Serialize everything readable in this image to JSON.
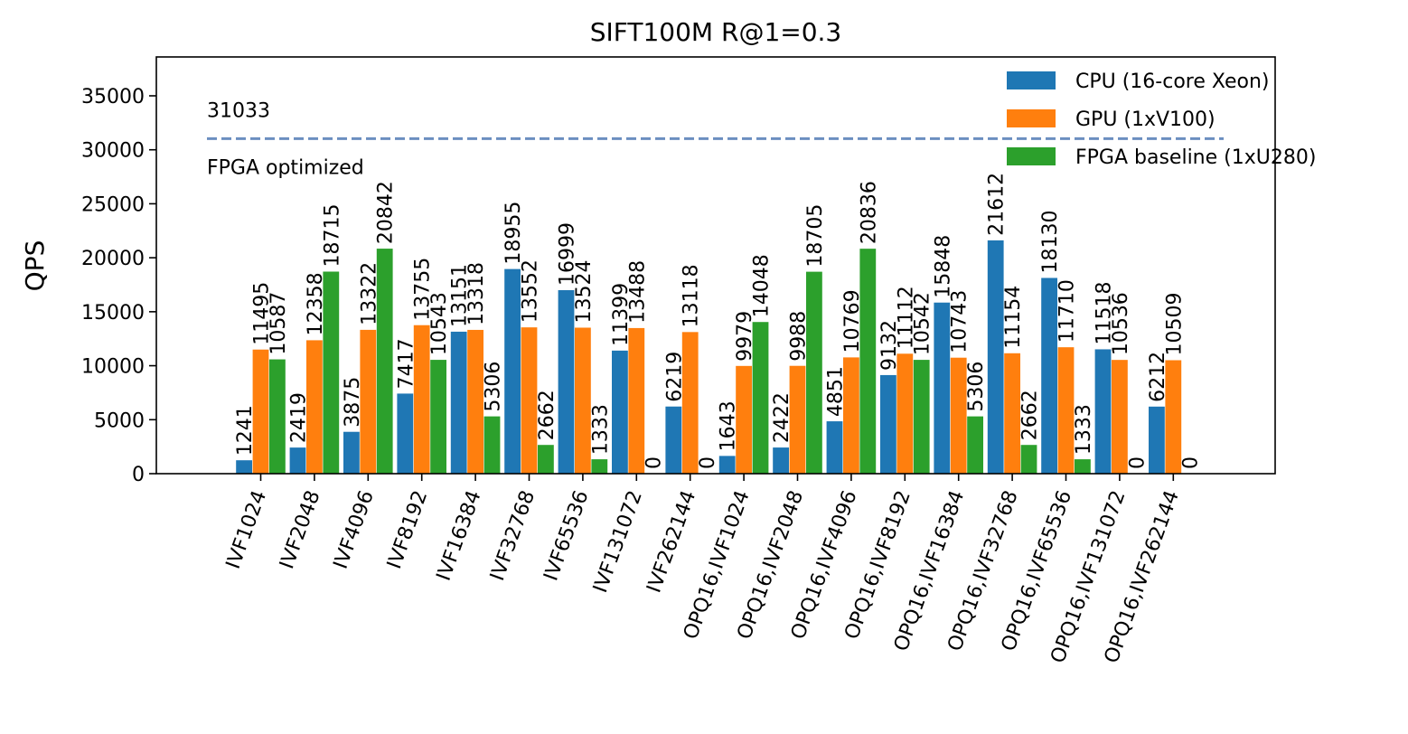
{
  "chart_data": {
    "type": "bar",
    "title": "SIFT100M R@1=0.3",
    "xlabel": "",
    "ylabel": "QPS",
    "ylim": [
      0,
      38600
    ],
    "yticks": [
      0,
      5000,
      10000,
      15000,
      20000,
      25000,
      30000,
      35000
    ],
    "categories": [
      "IVF1024",
      "IVF2048",
      "IVF4096",
      "IVF8192",
      "IVF16384",
      "IVF32768",
      "IVF65536",
      "IVF131072",
      "IVF262144",
      "OPQ16,IVF1024",
      "OPQ16,IVF2048",
      "OPQ16,IVF4096",
      "OPQ16,IVF8192",
      "OPQ16,IVF16384",
      "OPQ16,IVF32768",
      "OPQ16,IVF65536",
      "OPQ16,IVF131072",
      "OPQ16,IVF262144"
    ],
    "series": [
      {
        "name": "CPU (16-core Xeon)",
        "color": "#1f77b4",
        "values": [
          1241,
          2419,
          3875,
          7417,
          13151,
          18955,
          16999,
          11399,
          6219,
          1643,
          2422,
          4851,
          9132,
          15848,
          21612,
          18130,
          11518,
          6212
        ]
      },
      {
        "name": "GPU (1xV100)",
        "color": "#ff7f0e",
        "values": [
          11495,
          12358,
          13322,
          13755,
          13318,
          13552,
          13524,
          13488,
          13118,
          9979,
          9988,
          10769,
          11112,
          10743,
          11154,
          11710,
          10536,
          10509
        ]
      },
      {
        "name": "FPGA baseline (1xU280)",
        "color": "#2ca02c",
        "values": [
          10587,
          18715,
          20842,
          10543,
          5306,
          2662,
          1333,
          0,
          0,
          14048,
          18705,
          20836,
          10542,
          5306,
          2662,
          1333,
          0,
          0
        ]
      }
    ],
    "reference_line": {
      "value": 31033,
      "value_label": "31033",
      "label": "FPGA optimized",
      "color": "#6b8fc0",
      "style": "dashed"
    },
    "legend_position": "top-right",
    "grid": false
  }
}
